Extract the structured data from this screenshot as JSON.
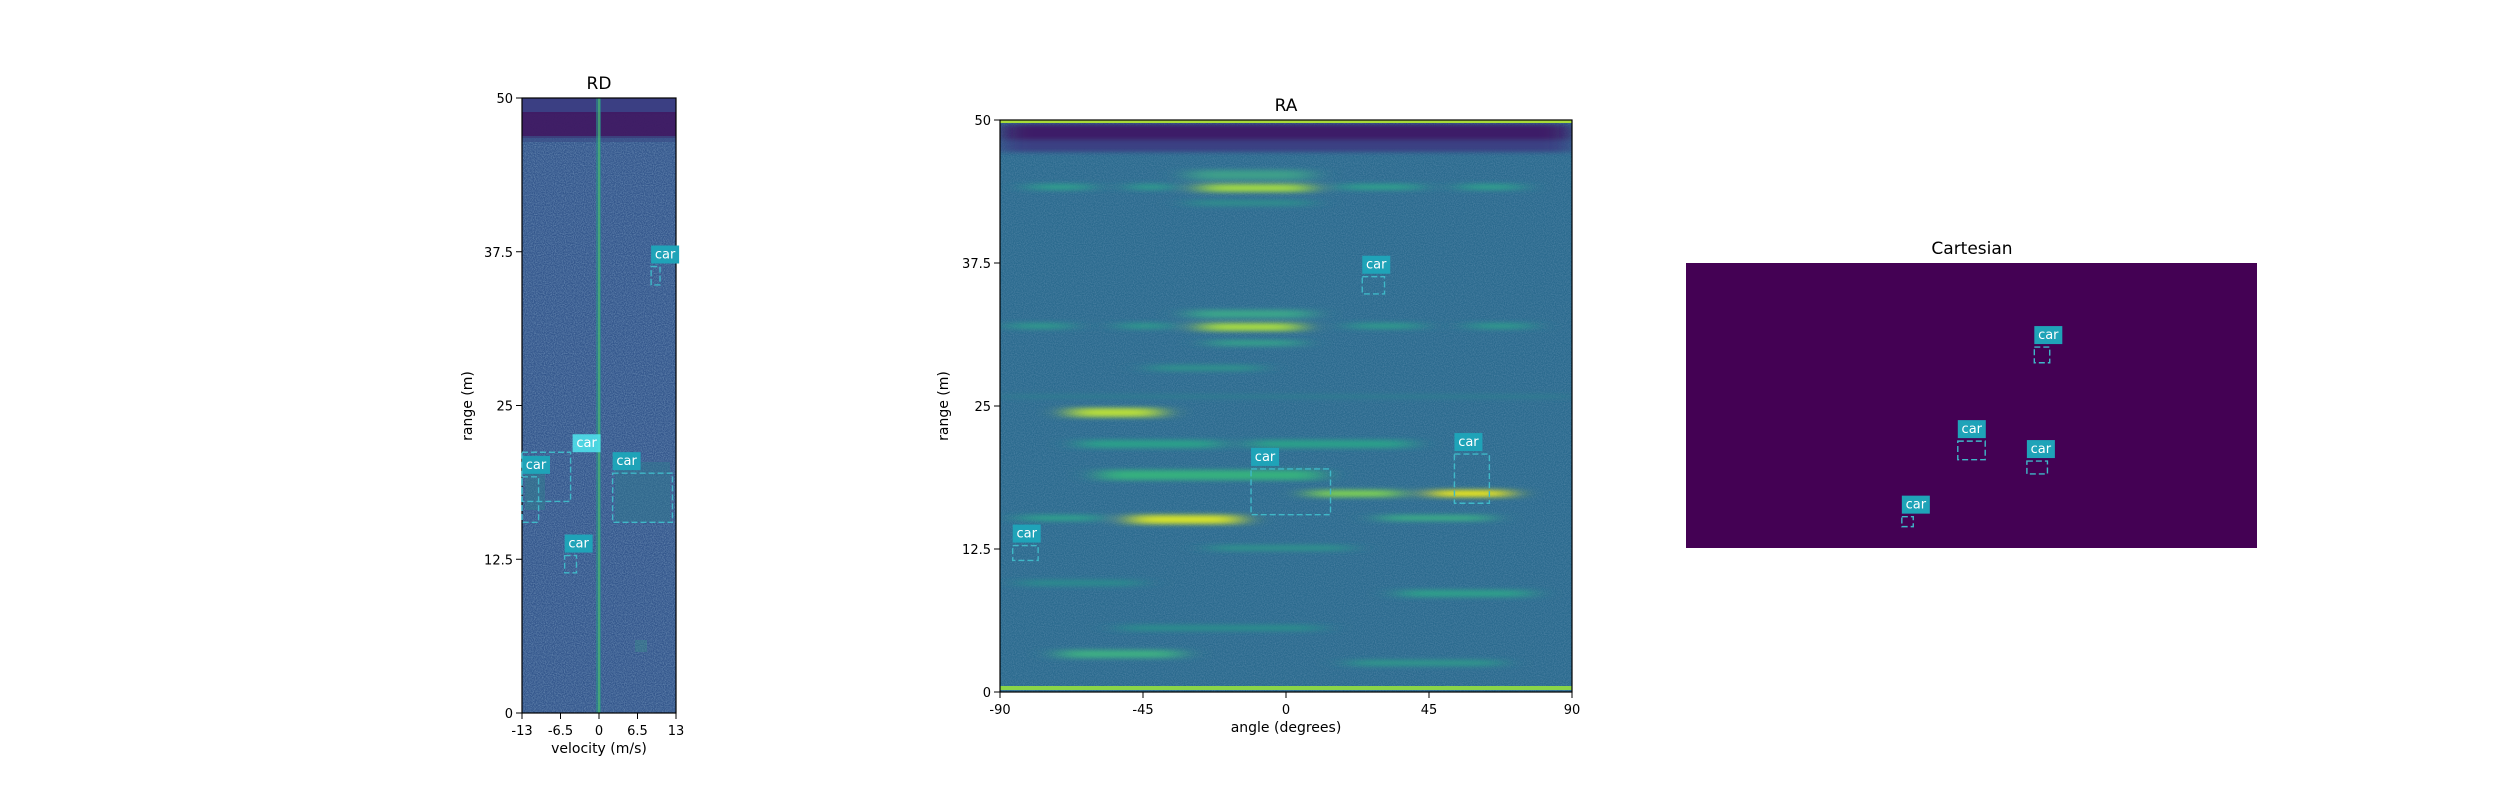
{
  "chart_data": [
    {
      "type": "heatmap",
      "title": "RD",
      "xlabel": "velocity (m/s)",
      "ylabel": "range (m)",
      "xlim": [
        -13,
        13
      ],
      "ylim": [
        0,
        50
      ],
      "x_ticks": [
        {
          "v": -13,
          "label": "-13"
        },
        {
          "v": -6.5,
          "label": "-6.5"
        },
        {
          "v": 0,
          "label": "0"
        },
        {
          "v": 6.5,
          "label": "6.5"
        },
        {
          "v": 13,
          "label": "13"
        }
      ],
      "y_ticks": [
        {
          "v": 0,
          "label": "0"
        },
        {
          "v": 12.5,
          "label": "12.5"
        },
        {
          "v": 25,
          "label": "25"
        },
        {
          "v": 37.5,
          "label": "37.5"
        },
        {
          "v": 50,
          "label": "50"
        }
      ],
      "boxes": [
        {
          "label": "car",
          "x0": 8.8,
          "x1": 10.3,
          "y0": 34.8,
          "y1": 36.3
        },
        {
          "label": "car",
          "x0": 2.3,
          "x1": 12.4,
          "y0": 15.5,
          "y1": 19.5
        },
        {
          "label": "car",
          "x0": -13,
          "x1": -10.2,
          "y0": 15.5,
          "y1": 19.2
        },
        {
          "label": "car",
          "x0": -13,
          "x1": -4.8,
          "y0": 17.2,
          "y1": 21.2
        },
        {
          "label": "car",
          "x0": -5.8,
          "x1": -3.8,
          "y0": 11.4,
          "y1": 12.8
        }
      ]
    },
    {
      "type": "heatmap",
      "title": "RA",
      "xlabel": "angle (degrees)",
      "ylabel": "range (m)",
      "xlim": [
        -90,
        90
      ],
      "ylim": [
        0,
        50
      ],
      "x_ticks": [
        {
          "v": -90,
          "label": "-90"
        },
        {
          "v": -45,
          "label": "-45"
        },
        {
          "v": 0,
          "label": "0"
        },
        {
          "v": 45,
          "label": "45"
        },
        {
          "v": 90,
          "label": "90"
        }
      ],
      "y_ticks": [
        {
          "v": 0,
          "label": "0"
        },
        {
          "v": 12.5,
          "label": "12.5"
        },
        {
          "v": 25,
          "label": "25"
        },
        {
          "v": 37.5,
          "label": "37.5"
        },
        {
          "v": 50,
          "label": "50"
        }
      ],
      "boxes": [
        {
          "label": "car",
          "x0": -86,
          "x1": -78,
          "y0": 11.5,
          "y1": 12.8
        },
        {
          "label": "car",
          "x0": 24,
          "x1": 31,
          "y0": 34.8,
          "y1": 36.3
        },
        {
          "label": "car",
          "x0": -11,
          "x1": 14,
          "y0": 15.5,
          "y1": 19.5
        },
        {
          "label": "car",
          "x0": 53,
          "x1": 64,
          "y0": 16.5,
          "y1": 20.8
        }
      ]
    },
    {
      "type": "heatmap",
      "title": "Cartesian",
      "xlabel": "",
      "ylabel": "",
      "boxes": [
        {
          "label": "car",
          "fx0": 0.61,
          "fx1": 0.637,
          "fy0": 0.295,
          "fy1": 0.35
        },
        {
          "label": "car",
          "fx0": 0.476,
          "fx1": 0.524,
          "fy0": 0.625,
          "fy1": 0.69
        },
        {
          "label": "car",
          "fx0": 0.597,
          "fx1": 0.633,
          "fy0": 0.695,
          "fy1": 0.74
        },
        {
          "label": "car",
          "fx0": 0.378,
          "fx1": 0.398,
          "fy0": 0.89,
          "fy1": 0.925
        }
      ]
    }
  ]
}
